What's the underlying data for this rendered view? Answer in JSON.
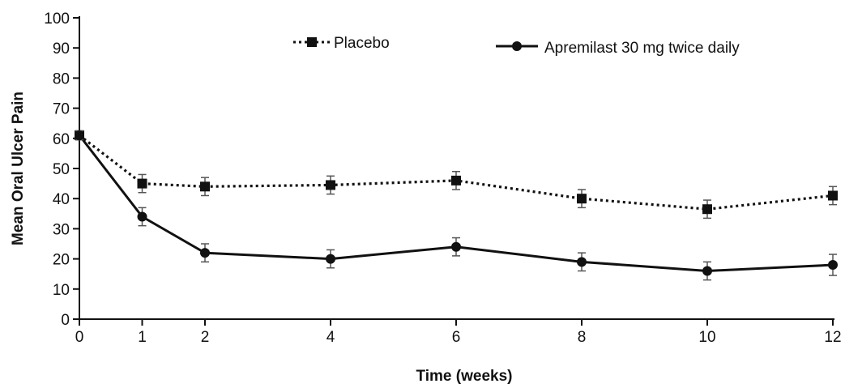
{
  "chart_data": {
    "type": "line",
    "title": "",
    "xlabel": "Time (weeks)",
    "ylabel": "Mean Oral Ulcer Pain",
    "x": [
      0,
      1,
      2,
      4,
      6,
      8,
      10,
      12
    ],
    "x_ticks": [
      "0",
      "1",
      "2",
      "4",
      "6",
      "8",
      "10",
      "12"
    ],
    "y_ticks": [
      "0",
      "10",
      "20",
      "30",
      "40",
      "50",
      "60",
      "70",
      "80",
      "90",
      "100"
    ],
    "xlim": [
      0,
      12
    ],
    "ylim": [
      0,
      100
    ],
    "grid": false,
    "legend_position": "top",
    "series": [
      {
        "name": "Placebo",
        "style": "dotted",
        "marker": "square",
        "color": "#111111",
        "values": [
          61,
          45,
          44,
          44.5,
          46,
          40,
          36.5,
          41
        ],
        "error": [
          1.5,
          3,
          3,
          3,
          3,
          3,
          3,
          3
        ]
      },
      {
        "name": "Apremilast 30 mg twice daily",
        "style": "solid",
        "marker": "circle",
        "color": "#111111",
        "values": [
          61,
          34,
          22,
          20,
          24,
          19,
          16,
          18
        ],
        "error": [
          1.5,
          3,
          3,
          3,
          3,
          3,
          3,
          3.5
        ]
      }
    ]
  }
}
